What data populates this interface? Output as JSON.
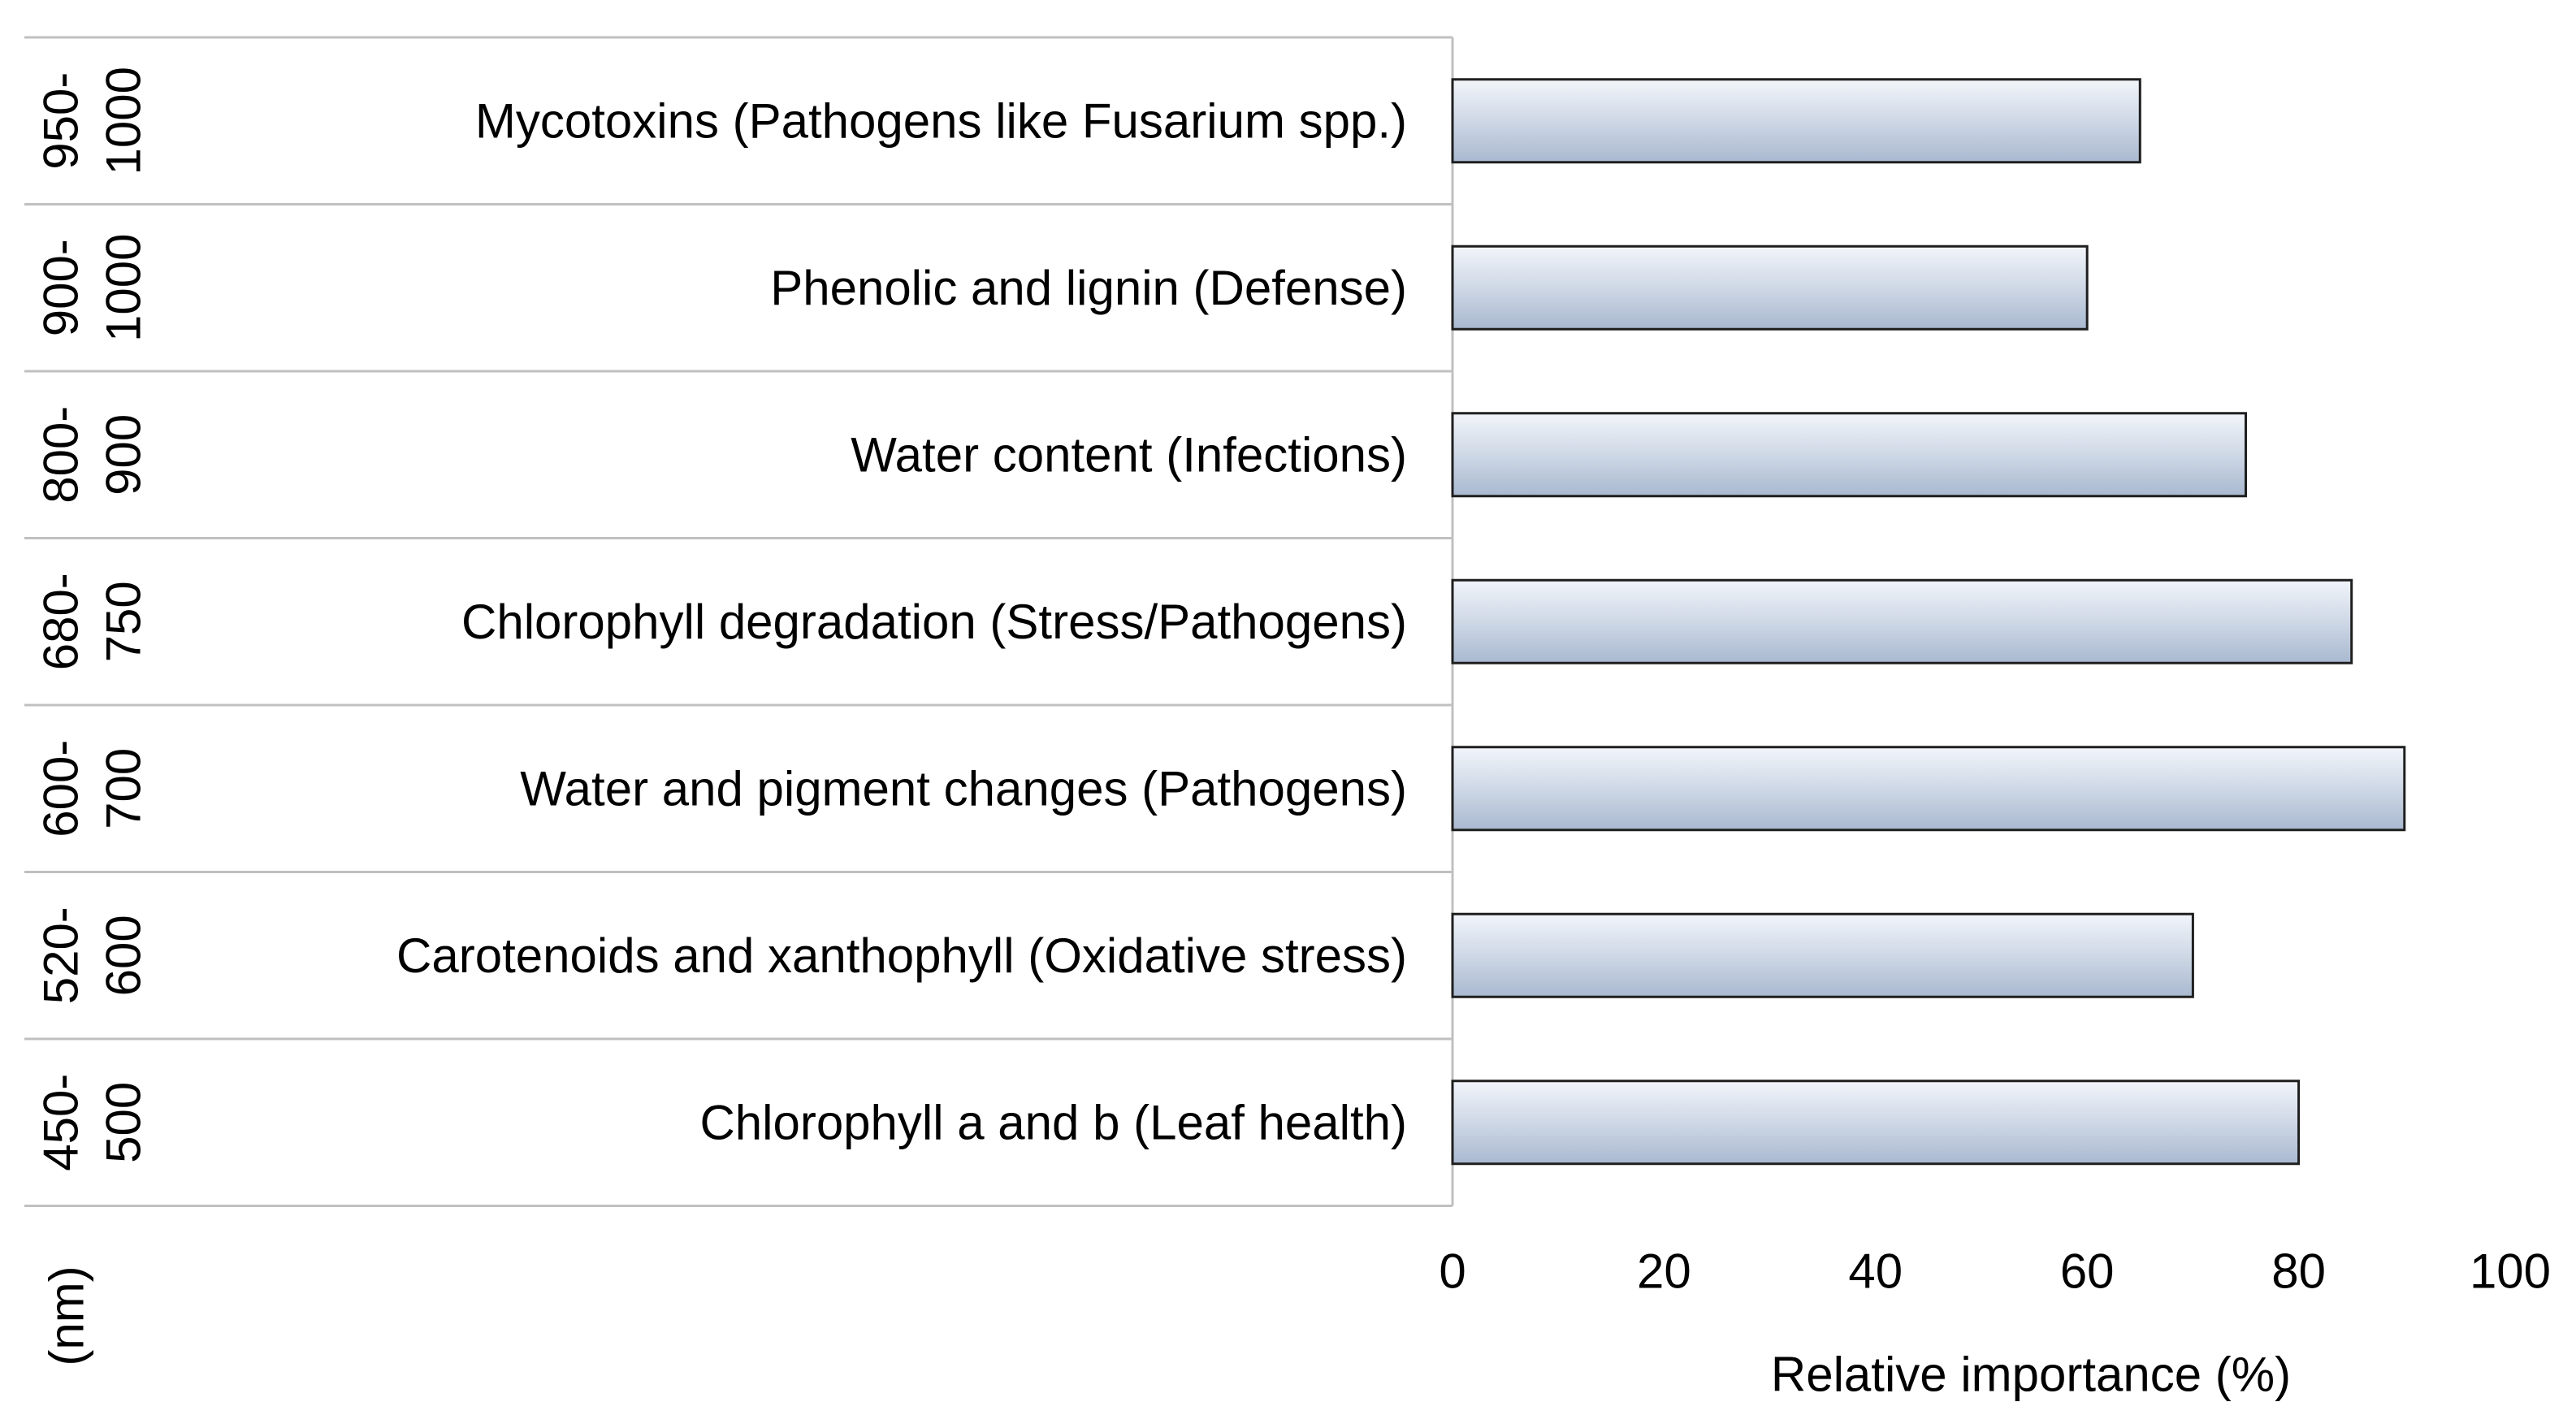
{
  "chart_data": {
    "type": "bar",
    "orientation": "horizontal",
    "categories": [
      {
        "range": [
          "950-",
          "1000"
        ],
        "label": "Mycotoxins (Pathogens like Fusarium spp.)"
      },
      {
        "range": [
          "900-",
          "1000"
        ],
        "label": "Phenolic and lignin (Defense)"
      },
      {
        "range": [
          "800-",
          "900"
        ],
        "label": "Water content (Infections)"
      },
      {
        "range": [
          "680-",
          "750"
        ],
        "label": "Chlorophyll degradation (Stress/Pathogens)"
      },
      {
        "range": [
          "600-",
          "700"
        ],
        "label": "Water and pigment changes (Pathogens)"
      },
      {
        "range": [
          "520-",
          "600"
        ],
        "label": "Carotenoids and xanthophyll (Oxidative stress)"
      },
      {
        "range": [
          "450-",
          "500"
        ],
        "label": "Chlorophyll a and b (Leaf health)"
      }
    ],
    "values": [
      65,
      60,
      75,
      85,
      90,
      70,
      80
    ],
    "xlabel": "Relative importance (%)",
    "ylabel": "(nm)",
    "xlim": [
      0,
      100
    ],
    "xticks": [
      "0",
      "20",
      "40",
      "60",
      "80",
      "100"
    ],
    "grid": false,
    "legend": "none",
    "colors": {
      "bar_top": "#f2f5fa",
      "bar_bottom": "#a9b9d0",
      "bar_stroke": "#1f1f1f",
      "table_line": "#c0c0c0"
    }
  }
}
